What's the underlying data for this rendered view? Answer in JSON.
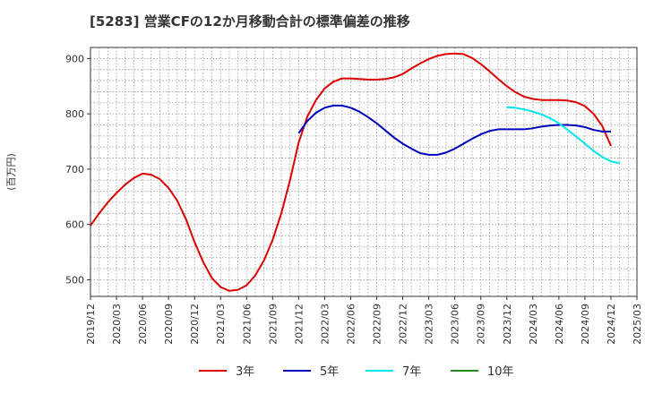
{
  "chart_data": {
    "type": "line",
    "title": "[5283]  営業CFの12か月移動合計の標準偏差の推移",
    "ylabel": "(百万円)",
    "xlabel": "",
    "ylim": [
      470,
      920
    ],
    "yticks": [
      500,
      600,
      700,
      800,
      900
    ],
    "xlim": [
      "2019-12",
      "2025-03"
    ],
    "xticks": [
      "2019/12",
      "2020/03",
      "2020/06",
      "2020/09",
      "2020/12",
      "2021/03",
      "2021/06",
      "2021/09",
      "2021/12",
      "2022/03",
      "2022/06",
      "2022/09",
      "2022/12",
      "2023/03",
      "2023/06",
      "2023/09",
      "2023/12",
      "2024/03",
      "2024/06",
      "2024/09",
      "2024/12",
      "2025/03"
    ],
    "grid": true,
    "legend_position": "bottom",
    "series": [
      {
        "name": "3年",
        "color": "#dd0000",
        "points": [
          [
            "2019-12",
            598
          ],
          [
            "2020-01",
            620
          ],
          [
            "2020-02",
            640
          ],
          [
            "2020-03",
            657
          ],
          [
            "2020-04",
            672
          ],
          [
            "2020-05",
            684
          ],
          [
            "2020-06",
            692
          ],
          [
            "2020-07",
            690
          ],
          [
            "2020-08",
            682
          ],
          [
            "2020-09",
            666
          ],
          [
            "2020-10",
            643
          ],
          [
            "2020-11",
            610
          ],
          [
            "2020-12",
            568
          ],
          [
            "2021-01",
            532
          ],
          [
            "2021-02",
            503
          ],
          [
            "2021-03",
            487
          ],
          [
            "2021-04",
            480
          ],
          [
            "2021-05",
            482
          ],
          [
            "2021-06",
            490
          ],
          [
            "2021-07",
            508
          ],
          [
            "2021-08",
            535
          ],
          [
            "2021-09",
            572
          ],
          [
            "2021-10",
            620
          ],
          [
            "2021-11",
            680
          ],
          [
            "2021-12",
            748
          ],
          [
            "2022-01",
            795
          ],
          [
            "2022-02",
            825
          ],
          [
            "2022-03",
            846
          ],
          [
            "2022-04",
            858
          ],
          [
            "2022-05",
            864
          ],
          [
            "2022-06",
            864
          ],
          [
            "2022-07",
            863
          ],
          [
            "2022-08",
            862
          ],
          [
            "2022-09",
            862
          ],
          [
            "2022-10",
            863
          ],
          [
            "2022-11",
            866
          ],
          [
            "2022-12",
            872
          ],
          [
            "2023-01",
            882
          ],
          [
            "2023-02",
            891
          ],
          [
            "2023-03",
            899
          ],
          [
            "2023-04",
            905
          ],
          [
            "2023-05",
            908
          ],
          [
            "2023-06",
            909
          ],
          [
            "2023-07",
            908
          ],
          [
            "2023-08",
            901
          ],
          [
            "2023-09",
            890
          ],
          [
            "2023-10",
            877
          ],
          [
            "2023-11",
            863
          ],
          [
            "2023-12",
            850
          ],
          [
            "2024-01",
            839
          ],
          [
            "2024-02",
            831
          ],
          [
            "2024-03",
            827
          ],
          [
            "2024-04",
            825
          ],
          [
            "2024-05",
            825
          ],
          [
            "2024-06",
            825
          ],
          [
            "2024-07",
            824
          ],
          [
            "2024-08",
            821
          ],
          [
            "2024-09",
            814
          ],
          [
            "2024-10",
            800
          ],
          [
            "2024-11",
            778
          ],
          [
            "2024-12",
            742
          ]
        ]
      },
      {
        "name": "5年",
        "color": "#0000bb",
        "points": [
          [
            "2021-12",
            765
          ],
          [
            "2022-01",
            787
          ],
          [
            "2022-02",
            802
          ],
          [
            "2022-03",
            811
          ],
          [
            "2022-04",
            815
          ],
          [
            "2022-05",
            815
          ],
          [
            "2022-06",
            811
          ],
          [
            "2022-07",
            804
          ],
          [
            "2022-08",
            794
          ],
          [
            "2022-09",
            783
          ],
          [
            "2022-10",
            770
          ],
          [
            "2022-11",
            757
          ],
          [
            "2022-12",
            746
          ],
          [
            "2023-01",
            737
          ],
          [
            "2023-02",
            729
          ],
          [
            "2023-03",
            726
          ],
          [
            "2023-04",
            726
          ],
          [
            "2023-05",
            730
          ],
          [
            "2023-06",
            737
          ],
          [
            "2023-07",
            746
          ],
          [
            "2023-08",
            755
          ],
          [
            "2023-09",
            763
          ],
          [
            "2023-10",
            769
          ],
          [
            "2023-11",
            772
          ],
          [
            "2023-12",
            772
          ],
          [
            "2024-01",
            772
          ],
          [
            "2024-02",
            772
          ],
          [
            "2024-03",
            774
          ],
          [
            "2024-04",
            777
          ],
          [
            "2024-05",
            779
          ],
          [
            "2024-06",
            780
          ],
          [
            "2024-07",
            780
          ],
          [
            "2024-08",
            779
          ],
          [
            "2024-09",
            776
          ],
          [
            "2024-10",
            771
          ],
          [
            "2024-11",
            768
          ],
          [
            "2024-12",
            768
          ]
        ]
      },
      {
        "name": "7年",
        "color": "#00e5ee",
        "points": [
          [
            "2023-12",
            812
          ],
          [
            "2024-01",
            811
          ],
          [
            "2024-02",
            808
          ],
          [
            "2024-03",
            804
          ],
          [
            "2024-04",
            799
          ],
          [
            "2024-05",
            792
          ],
          [
            "2024-06",
            783
          ],
          [
            "2024-07",
            771
          ],
          [
            "2024-08",
            759
          ],
          [
            "2024-09",
            746
          ],
          [
            "2024-10",
            733
          ],
          [
            "2024-11",
            722
          ],
          [
            "2024-12",
            714
          ],
          [
            "2025-01",
            711
          ]
        ]
      },
      {
        "name": "10年",
        "color": "#228b22",
        "points": []
      }
    ]
  }
}
